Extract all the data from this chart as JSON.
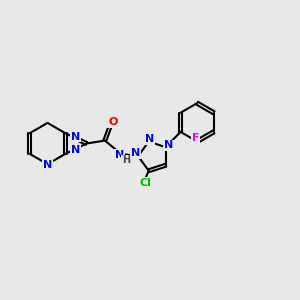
{
  "bg_color": "#e8e8e8",
  "atom_colors": {
    "N": "#0000ee",
    "O": "#ee0000",
    "Cl": "#00bb00",
    "F": "#ee00ee",
    "C": "#000000",
    "H": "#444444"
  },
  "bond_color": "#000000",
  "figsize": [
    3.0,
    3.0
  ],
  "dpi": 100
}
